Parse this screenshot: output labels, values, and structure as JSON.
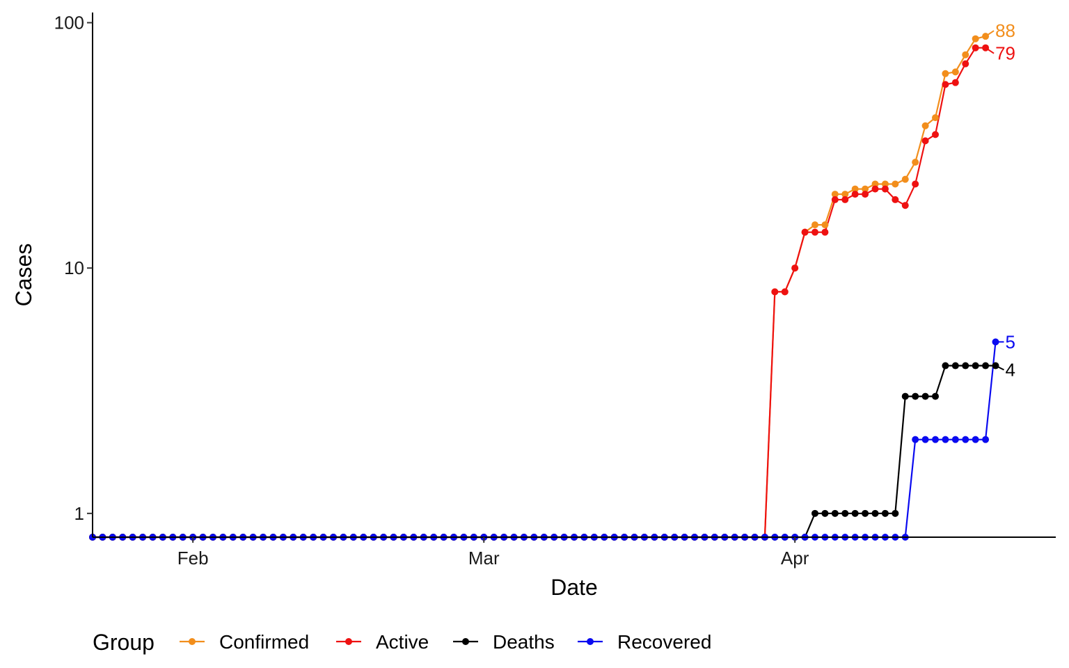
{
  "chart_data": {
    "type": "line",
    "xlabel": "Date",
    "ylabel": "Cases",
    "y_scale": "log10",
    "ylim": [
      0.8,
      110
    ],
    "x_date_range": [
      "2020-01-22",
      "2020-04-27"
    ],
    "x_ticks": [
      {
        "date": "2020-02-01",
        "label": "Feb"
      },
      {
        "date": "2020-03-01",
        "label": "Mar"
      },
      {
        "date": "2020-04-01",
        "label": "Apr"
      }
    ],
    "y_ticks": [
      {
        "value": 1,
        "label": "1"
      },
      {
        "value": 10,
        "label": "10"
      },
      {
        "value": 100,
        "label": "100"
      }
    ],
    "grid": false,
    "legend": {
      "title": "Group",
      "position": "bottom",
      "entries": [
        "Confirmed",
        "Active",
        "Deaths",
        "Recovered"
      ]
    },
    "x_start": "2020-01-22",
    "series": [
      {
        "name": "Confirmed",
        "color": "#F28E1C",
        "end_label": "88",
        "values": [
          0,
          0,
          0,
          0,
          0,
          0,
          0,
          0,
          0,
          0,
          0,
          0,
          0,
          0,
          0,
          0,
          0,
          0,
          0,
          0,
          0,
          0,
          0,
          0,
          0,
          0,
          0,
          0,
          0,
          0,
          0,
          0,
          0,
          0,
          0,
          0,
          0,
          0,
          0,
          0,
          0,
          0,
          0,
          0,
          0,
          0,
          0,
          0,
          0,
          0,
          0,
          0,
          0,
          0,
          0,
          0,
          0,
          0,
          0,
          0,
          0,
          0,
          0,
          0,
          0,
          0,
          0,
          0,
          8,
          8,
          10,
          14,
          15,
          15,
          20,
          20,
          21,
          21,
          22,
          22,
          22,
          23,
          27,
          38,
          41,
          62,
          63,
          74,
          86,
          88
        ]
      },
      {
        "name": "Active",
        "color": "#EE1111",
        "end_label": "79",
        "values": [
          0,
          0,
          0,
          0,
          0,
          0,
          0,
          0,
          0,
          0,
          0,
          0,
          0,
          0,
          0,
          0,
          0,
          0,
          0,
          0,
          0,
          0,
          0,
          0,
          0,
          0,
          0,
          0,
          0,
          0,
          0,
          0,
          0,
          0,
          0,
          0,
          0,
          0,
          0,
          0,
          0,
          0,
          0,
          0,
          0,
          0,
          0,
          0,
          0,
          0,
          0,
          0,
          0,
          0,
          0,
          0,
          0,
          0,
          0,
          0,
          0,
          0,
          0,
          0,
          0,
          0,
          0,
          0,
          8,
          8,
          10,
          14,
          14,
          14,
          19,
          19,
          20,
          20,
          21,
          21,
          19,
          18,
          22,
          33,
          35,
          56,
          57,
          68,
          79,
          79
        ]
      },
      {
        "name": "Deaths",
        "color": "#000000",
        "end_label": "4",
        "values": [
          0,
          0,
          0,
          0,
          0,
          0,
          0,
          0,
          0,
          0,
          0,
          0,
          0,
          0,
          0,
          0,
          0,
          0,
          0,
          0,
          0,
          0,
          0,
          0,
          0,
          0,
          0,
          0,
          0,
          0,
          0,
          0,
          0,
          0,
          0,
          0,
          0,
          0,
          0,
          0,
          0,
          0,
          0,
          0,
          0,
          0,
          0,
          0,
          0,
          0,
          0,
          0,
          0,
          0,
          0,
          0,
          0,
          0,
          0,
          0,
          0,
          0,
          0,
          0,
          0,
          0,
          0,
          0,
          0,
          0,
          0,
          0,
          1,
          1,
          1,
          1,
          1,
          1,
          1,
          1,
          1,
          3,
          3,
          3,
          3,
          4,
          4,
          4,
          4,
          4,
          4
        ]
      },
      {
        "name": "Recovered",
        "color": "#0A0AF0",
        "end_label": "5",
        "values": [
          0,
          0,
          0,
          0,
          0,
          0,
          0,
          0,
          0,
          0,
          0,
          0,
          0,
          0,
          0,
          0,
          0,
          0,
          0,
          0,
          0,
          0,
          0,
          0,
          0,
          0,
          0,
          0,
          0,
          0,
          0,
          0,
          0,
          0,
          0,
          0,
          0,
          0,
          0,
          0,
          0,
          0,
          0,
          0,
          0,
          0,
          0,
          0,
          0,
          0,
          0,
          0,
          0,
          0,
          0,
          0,
          0,
          0,
          0,
          0,
          0,
          0,
          0,
          0,
          0,
          0,
          0,
          0,
          0,
          0,
          0,
          0,
          0,
          0,
          0,
          0,
          0,
          0,
          0,
          0,
          0,
          0,
          2,
          2,
          2,
          2,
          2,
          2,
          2,
          2,
          5
        ]
      }
    ]
  }
}
